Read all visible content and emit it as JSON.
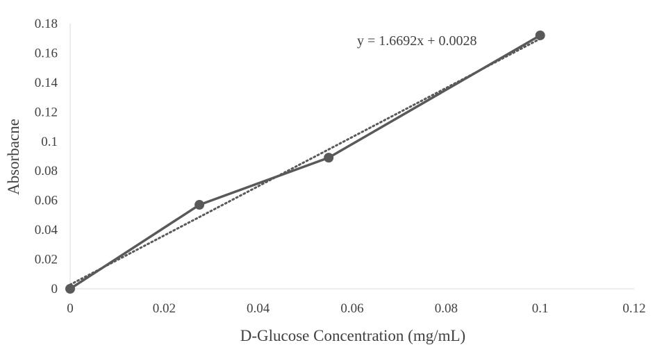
{
  "chart_data": {
    "type": "line",
    "title": "",
    "xlabel": "D-Glucose Concentration (mg/mL)",
    "ylabel": "Absorbacne",
    "xlim": [
      0,
      0.12
    ],
    "ylim": [
      0,
      0.18
    ],
    "x_ticks": [
      "0",
      "0.02",
      "0.04",
      "0.06",
      "0.08",
      "0.1",
      "0.12"
    ],
    "y_ticks": [
      "0",
      "0.02",
      "0.04",
      "0.06",
      "0.08",
      "0.1",
      "0.12",
      "0.14",
      "0.16",
      "0.18"
    ],
    "grid": false,
    "series": [
      {
        "name": "Absorbance",
        "x": [
          0,
          0.0275,
          0.055,
          0.1
        ],
        "y": [
          0,
          0.057,
          0.089,
          0.172
        ],
        "marker": "circle",
        "color": "#595959"
      }
    ],
    "trendline": {
      "type": "linear",
      "slope": 1.6692,
      "intercept": 0.0028,
      "x_range": [
        0,
        0.1
      ],
      "style": "dotted",
      "color": "#595959",
      "equation_label": "y = 1.6692x + 0.0028",
      "label_placement": "top-right"
    }
  }
}
